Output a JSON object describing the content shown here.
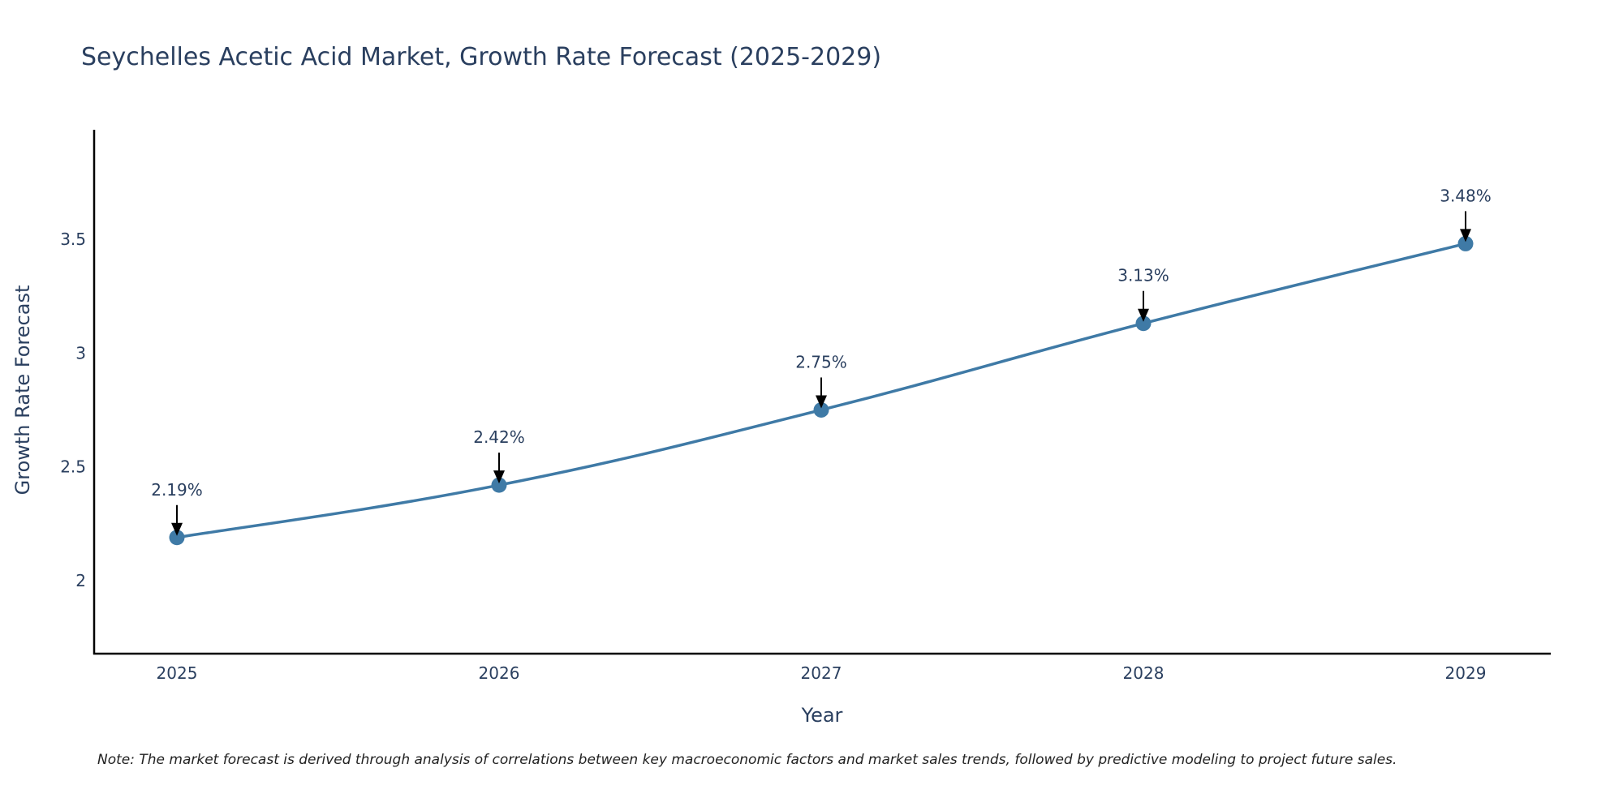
{
  "chart_data": {
    "type": "line",
    "title": "Seychelles Acetic Acid Market, Growth Rate Forecast (2025-2029)",
    "xlabel": "Year",
    "ylabel": "Growth Rate Forecast",
    "categories": [
      "2025",
      "2026",
      "2027",
      "2028",
      "2029"
    ],
    "series": [
      {
        "name": "Growth Rate Forecast",
        "values": [
          2.19,
          2.42,
          2.75,
          3.13,
          3.48
        ],
        "labels": [
          "2.19%",
          "2.42%",
          "2.75%",
          "3.13%",
          "3.48%"
        ]
      }
    ],
    "yticks": [
      2,
      2.5,
      3,
      3.5
    ],
    "ytick_labels": [
      "2",
      "2.5",
      "3",
      "3.5"
    ],
    "ylim": [
      1.68,
      3.98
    ],
    "grid": false,
    "legend": "none",
    "line_color": "#3f7aa6",
    "note": "Note: The market forecast is derived through analysis of correlations between key macroeconomic factors and market sales trends, followed by predictive modeling to project future sales."
  }
}
